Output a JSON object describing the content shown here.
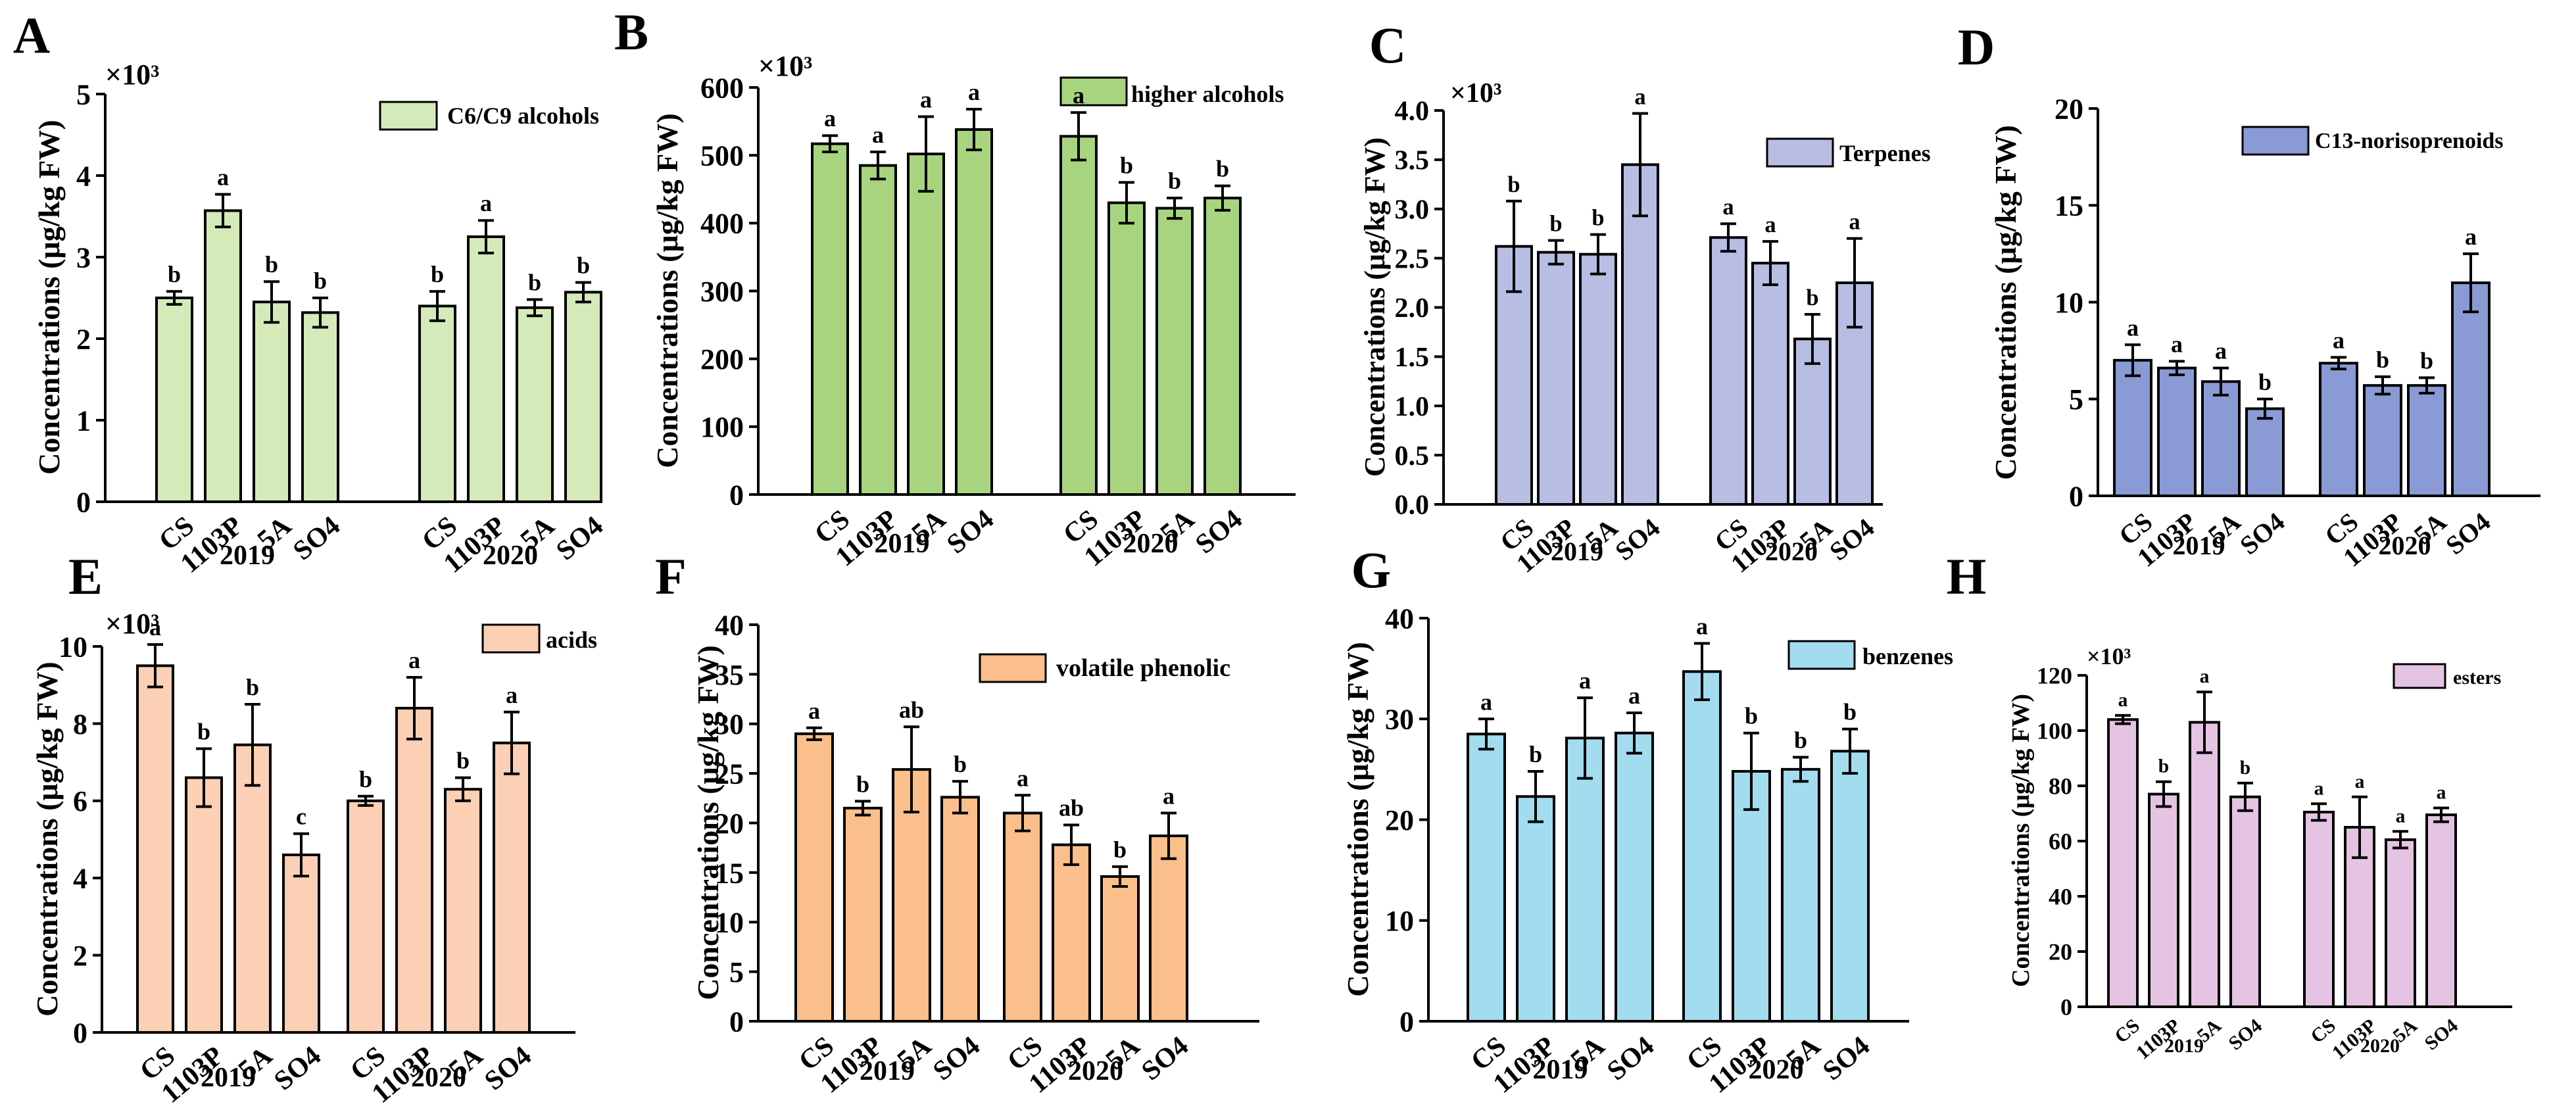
{
  "figure": {
    "categories": [
      "CS",
      "1103P",
      "5A",
      "SO4"
    ],
    "years": [
      "2019",
      "2020"
    ],
    "ylabel": "Concentrations (μg/kg FW)"
  },
  "chart_data": [
    {
      "panel": "A",
      "type": "bar",
      "legend": "C6/C9 alcohols",
      "color": "#d5eab9",
      "multiplier": "×10³",
      "ylim": [
        0,
        5
      ],
      "yticks": [
        0,
        1,
        2,
        3,
        4,
        5
      ],
      "series": [
        {
          "year": "2019",
          "values": [
            2.5,
            3.57,
            2.45,
            2.32
          ],
          "errors": [
            0.08,
            0.2,
            0.25,
            0.18
          ],
          "letters": [
            "b",
            "a",
            "b",
            "b"
          ]
        },
        {
          "year": "2020",
          "values": [
            2.4,
            3.25,
            2.38,
            2.57
          ],
          "errors": [
            0.18,
            0.2,
            0.1,
            0.12
          ],
          "letters": [
            "b",
            "a",
            "b",
            "b"
          ]
        }
      ]
    },
    {
      "panel": "B",
      "type": "bar",
      "legend": "higher alcohols",
      "color": "#a8d47f",
      "multiplier": "×10³",
      "ylim": [
        0,
        600
      ],
      "yticks": [
        0,
        100,
        200,
        300,
        400,
        500,
        600
      ],
      "series": [
        {
          "year": "2019",
          "values": [
            517,
            485,
            502,
            538
          ],
          "errors": [
            12,
            20,
            55,
            30
          ],
          "letters": [
            "a",
            "a",
            "a",
            "a"
          ]
        },
        {
          "year": "2020",
          "values": [
            528,
            430,
            422,
            437
          ],
          "errors": [
            35,
            30,
            15,
            18
          ],
          "letters": [
            "a",
            "b",
            "b",
            "b"
          ]
        }
      ]
    },
    {
      "panel": "C",
      "type": "bar",
      "legend": "Terpenes",
      "color": "#b7bde3",
      "multiplier": "×10³",
      "ylim": [
        0,
        4.0
      ],
      "yticks": [
        0.0,
        0.5,
        1.0,
        1.5,
        2.0,
        2.5,
        3.0,
        3.5,
        4.0
      ],
      "series": [
        {
          "year": "2019",
          "values": [
            2.62,
            2.56,
            2.54,
            3.45
          ],
          "errors": [
            0.46,
            0.12,
            0.2,
            0.52
          ],
          "letters": [
            "b",
            "b",
            "b",
            "a"
          ]
        },
        {
          "year": "2020",
          "values": [
            2.71,
            2.45,
            1.68,
            2.25
          ],
          "errors": [
            0.14,
            0.22,
            0.25,
            0.45
          ],
          "letters": [
            "a",
            "a",
            "b",
            "a"
          ]
        }
      ]
    },
    {
      "panel": "D",
      "type": "bar",
      "legend": "C13-norisoprenoids",
      "color": "#8a9ad4",
      "multiplier": "",
      "ylim": [
        0,
        20
      ],
      "yticks": [
        0,
        5,
        10,
        15,
        20
      ],
      "series": [
        {
          "year": "2019",
          "values": [
            7.0,
            6.6,
            5.9,
            4.5
          ],
          "errors": [
            0.8,
            0.35,
            0.7,
            0.5
          ],
          "letters": [
            "a",
            "a",
            "a",
            "b"
          ]
        },
        {
          "year": "2020",
          "values": [
            6.85,
            5.7,
            5.7,
            11.0
          ],
          "errors": [
            0.3,
            0.45,
            0.4,
            1.5
          ],
          "letters": [
            "a",
            "b",
            "b",
            "a"
          ]
        }
      ]
    },
    {
      "panel": "E",
      "type": "bar",
      "legend": "acids",
      "color": "#fbd0b5",
      "multiplier": "×10³",
      "ylim": [
        0,
        10
      ],
      "yticks": [
        0,
        2,
        4,
        6,
        8,
        10
      ],
      "series": [
        {
          "year": "2019",
          "values": [
            9.5,
            6.6,
            7.45,
            4.6
          ],
          "errors": [
            0.55,
            0.75,
            1.05,
            0.55
          ],
          "letters": [
            "a",
            "b",
            "b",
            "c"
          ]
        },
        {
          "year": "2020",
          "values": [
            6.0,
            8.4,
            6.3,
            7.5
          ],
          "errors": [
            0.12,
            0.8,
            0.3,
            0.8
          ],
          "letters": [
            "b",
            "a",
            "b",
            "a"
          ]
        }
      ]
    },
    {
      "panel": "F",
      "type": "bar",
      "legend": "volatile phenolic",
      "color": "#fbbf8b",
      "multiplier": "",
      "ylim": [
        0,
        40
      ],
      "yticks": [
        0,
        5,
        10,
        15,
        20,
        25,
        30,
        35,
        40
      ],
      "series": [
        {
          "year": "2019",
          "values": [
            29.0,
            21.5,
            25.4,
            22.6
          ],
          "errors": [
            0.6,
            0.7,
            4.3,
            1.6
          ],
          "letters": [
            "a",
            "b",
            "ab",
            "b"
          ]
        },
        {
          "year": "2020",
          "values": [
            21.0,
            17.8,
            14.6,
            18.7
          ],
          "errors": [
            1.8,
            2.0,
            1.0,
            2.3
          ],
          "letters": [
            "a",
            "ab",
            "b",
            "a"
          ]
        }
      ]
    },
    {
      "panel": "G",
      "type": "bar",
      "legend": "benzenes",
      "color": "#a3dcef",
      "multiplier": "",
      "ylim": [
        0,
        40
      ],
      "yticks": [
        0,
        10,
        20,
        30,
        40
      ],
      "series": [
        {
          "year": "2019",
          "values": [
            28.5,
            22.3,
            28.1,
            28.6
          ],
          "errors": [
            1.5,
            2.5,
            4.0,
            2.0
          ],
          "letters": [
            "a",
            "b",
            "a",
            "a"
          ]
        },
        {
          "year": "2020",
          "values": [
            34.7,
            24.8,
            25.0,
            26.8
          ],
          "errors": [
            2.8,
            3.8,
            1.2,
            2.2
          ],
          "letters": [
            "a",
            "b",
            "b",
            "b"
          ]
        }
      ]
    },
    {
      "panel": "H",
      "type": "bar",
      "legend": "esters",
      "color": "#e4c4e2",
      "multiplier": "×10³",
      "ylim": [
        0,
        120
      ],
      "yticks": [
        0,
        20,
        40,
        60,
        80,
        100,
        120
      ],
      "series": [
        {
          "year": "2019",
          "values": [
            104,
            77,
            103,
            76
          ],
          "errors": [
            1.5,
            4.5,
            11,
            5
          ],
          "letters": [
            "a",
            "b",
            "a",
            "b"
          ]
        },
        {
          "year": "2020",
          "values": [
            70.5,
            65,
            60.5,
            69.5
          ],
          "errors": [
            3,
            11,
            3,
            2.5
          ],
          "letters": [
            "a",
            "a",
            "a",
            "a"
          ]
        }
      ]
    }
  ]
}
